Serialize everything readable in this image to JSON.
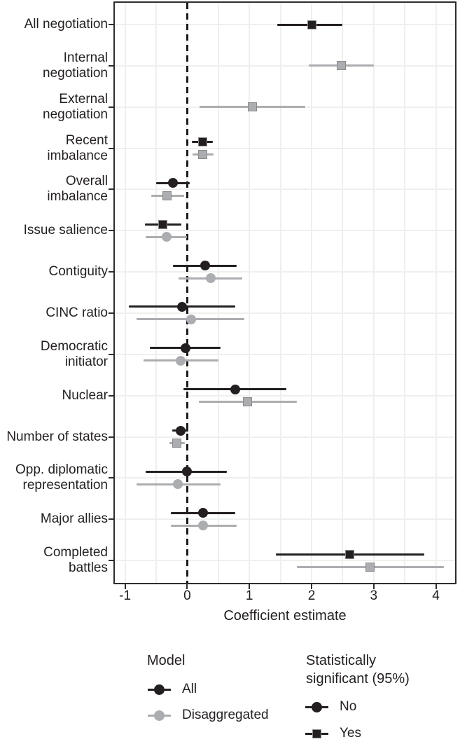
{
  "chart_data": {
    "type": "scatter",
    "subtype": "coefficient-forest-plot",
    "title": "",
    "xlabel": "Coefficient estimate",
    "ylabel": "",
    "x_ticks": [
      -1,
      0,
      1,
      2,
      3,
      4
    ],
    "xlim": [
      -1.18,
      4.33
    ],
    "grid": "on",
    "gridline_step": 0.5,
    "zero_reference_line": {
      "x": 0,
      "style": "dashed"
    },
    "legend_position": "bottom",
    "colors": {
      "all_model": "#231f20",
      "disaggregated_model": "#abadb0",
      "grid": "#efefef",
      "panel_border": "#2e2d2c",
      "background": "#ffffff"
    },
    "legend": {
      "model": {
        "title": "Model",
        "items": [
          {
            "label": "All",
            "shape": "circle",
            "color_key": "all_model"
          },
          {
            "label": "Disaggregated",
            "shape": "circle",
            "color_key": "disaggregated_model"
          }
        ]
      },
      "significance": {
        "title": "Statistically significant (95%)",
        "items": [
          {
            "label": "No",
            "shape": "circle",
            "color_key": "all_model"
          },
          {
            "label": "Yes",
            "shape": "square",
            "color_key": "all_model"
          }
        ]
      }
    },
    "rows": [
      {
        "label": "All negotiation",
        "lines": [
          "All negotiation"
        ],
        "points": [
          {
            "model": "All",
            "estimate": 2.0,
            "ci_low": 1.45,
            "ci_high": 2.5,
            "significant": true
          }
        ]
      },
      {
        "label": "Internal negotiation",
        "lines": [
          "Internal",
          "negotiation"
        ],
        "points": [
          {
            "model": "Disaggregated",
            "estimate": 2.48,
            "ci_low": 1.95,
            "ci_high": 3.0,
            "significant": true
          }
        ]
      },
      {
        "label": "External negotiation",
        "lines": [
          "External",
          "negotiation"
        ],
        "points": [
          {
            "model": "Disaggregated",
            "estimate": 1.05,
            "ci_low": 0.2,
            "ci_high": 1.9,
            "significant": true
          }
        ]
      },
      {
        "label": "Recent imbalance",
        "lines": [
          "Recent",
          "imbalance"
        ],
        "points": [
          {
            "model": "All",
            "estimate": 0.25,
            "ci_low": 0.07,
            "ci_high": 0.41,
            "significant": true
          },
          {
            "model": "Disaggregated",
            "estimate": 0.25,
            "ci_low": 0.09,
            "ci_high": 0.42,
            "significant": true
          }
        ]
      },
      {
        "label": "Overall imbalance",
        "lines": [
          "Overall",
          "imbalance"
        ],
        "points": [
          {
            "model": "All",
            "estimate": -0.23,
            "ci_low": -0.5,
            "ci_high": 0.04,
            "significant": false
          },
          {
            "model": "Disaggregated",
            "estimate": -0.33,
            "ci_low": -0.58,
            "ci_high": -0.05,
            "significant": true
          }
        ]
      },
      {
        "label": "Issue salience",
        "lines": [
          "Issue salience"
        ],
        "points": [
          {
            "model": "All",
            "estimate": -0.39,
            "ci_low": -0.68,
            "ci_high": -0.1,
            "significant": true
          },
          {
            "model": "Disaggregated",
            "estimate": -0.33,
            "ci_low": -0.67,
            "ci_high": 0.0,
            "significant": false
          }
        ]
      },
      {
        "label": "Contiguity",
        "lines": [
          "Contiguity"
        ],
        "points": [
          {
            "model": "All",
            "estimate": 0.29,
            "ci_low": -0.23,
            "ci_high": 0.79,
            "significant": false
          },
          {
            "model": "Disaggregated",
            "estimate": 0.38,
            "ci_low": -0.14,
            "ci_high": 0.89,
            "significant": false
          }
        ]
      },
      {
        "label": "CINC ratio",
        "lines": [
          "CINC ratio"
        ],
        "points": [
          {
            "model": "All",
            "estimate": -0.08,
            "ci_low": -0.94,
            "ci_high": 0.77,
            "significant": false
          },
          {
            "model": "Disaggregated",
            "estimate": 0.06,
            "ci_low": -0.82,
            "ci_high": 0.92,
            "significant": false
          }
        ]
      },
      {
        "label": "Democratic initiator",
        "lines": [
          "Democratic",
          "initiator"
        ],
        "points": [
          {
            "model": "All",
            "estimate": -0.03,
            "ci_low": -0.6,
            "ci_high": 0.54,
            "significant": false
          },
          {
            "model": "Disaggregated",
            "estimate": -0.11,
            "ci_low": -0.7,
            "ci_high": 0.5,
            "significant": false
          }
        ]
      },
      {
        "label": "Nuclear",
        "lines": [
          "Nuclear"
        ],
        "points": [
          {
            "model": "All",
            "estimate": 0.77,
            "ci_low": -0.06,
            "ci_high": 1.6,
            "significant": false
          },
          {
            "model": "Disaggregated",
            "estimate": 0.97,
            "ci_low": 0.19,
            "ci_high": 1.76,
            "significant": true
          }
        ]
      },
      {
        "label": "Number of states",
        "lines": [
          "Number of states"
        ],
        "points": [
          {
            "model": "All",
            "estimate": -0.11,
            "ci_low": -0.24,
            "ci_high": 0.02,
            "significant": false
          },
          {
            "model": "Disaggregated",
            "estimate": -0.17,
            "ci_low": -0.29,
            "ci_high": -0.04,
            "significant": true
          }
        ]
      },
      {
        "label": "Opp. diplomatic representation",
        "lines": [
          "Opp. diplomatic",
          "representation"
        ],
        "points": [
          {
            "model": "All",
            "estimate": -0.01,
            "ci_low": -0.67,
            "ci_high": 0.64,
            "significant": false
          },
          {
            "model": "Disaggregated",
            "estimate": -0.15,
            "ci_low": -0.82,
            "ci_high": 0.54,
            "significant": false
          }
        ]
      },
      {
        "label": "Major allies",
        "lines": [
          "Major allies"
        ],
        "points": [
          {
            "model": "All",
            "estimate": 0.25,
            "ci_low": -0.26,
            "ci_high": 0.77,
            "significant": false
          },
          {
            "model": "Disaggregated",
            "estimate": 0.25,
            "ci_low": -0.26,
            "ci_high": 0.79,
            "significant": false
          }
        ]
      },
      {
        "label": "Completed battles",
        "lines": [
          "Completed",
          "battles"
        ],
        "points": [
          {
            "model": "All",
            "estimate": 2.61,
            "ci_low": 1.43,
            "ci_high": 3.81,
            "significant": true
          },
          {
            "model": "Disaggregated",
            "estimate": 2.94,
            "ci_low": 1.76,
            "ci_high": 4.13,
            "significant": true
          }
        ]
      }
    ]
  }
}
